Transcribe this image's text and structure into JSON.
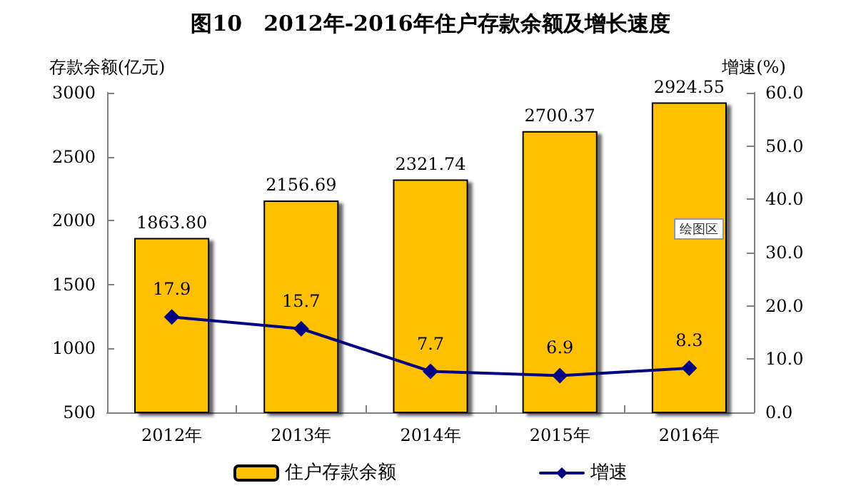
{
  "chart_data": {
    "type": "bar",
    "title": "图10　2012年-2016年住户存款余额及增长速度",
    "ylabel": "存款余额(亿元)",
    "y2label": "增速(%)",
    "categories": [
      "2012年",
      "2013年",
      "2014年",
      "2015年",
      "2016年"
    ],
    "series": [
      {
        "name": "住户存款余额",
        "color": "#ffc000",
        "values": [
          1863.8,
          2156.69,
          2321.74,
          2700.37,
          2924.55
        ],
        "value_labels": [
          "1863.80",
          "2156.69",
          "2321.74",
          "2700.37",
          "2924.55"
        ]
      },
      {
        "name": "增速",
        "type": "line",
        "axis": "y2",
        "color": "#000080",
        "values": [
          17.9,
          15.7,
          7.7,
          6.9,
          8.3
        ],
        "value_labels": [
          "17.9",
          "15.7",
          "7.7",
          "6.9",
          "8.3"
        ],
        "marker": "diamond"
      }
    ],
    "ylim": [
      500,
      3000
    ],
    "yticks": [
      500,
      1000,
      1500,
      2000,
      2500,
      3000
    ],
    "y2lim": [
      0,
      60
    ],
    "y2ticks": [
      {
        "value": 0,
        "label": "0.0"
      },
      {
        "value": 10,
        "label": "10.0"
      },
      {
        "value": 20,
        "label": "20.0"
      },
      {
        "value": 30,
        "label": "30.0"
      },
      {
        "value": 40,
        "label": "40.0"
      },
      {
        "value": 50,
        "label": "50.0"
      },
      {
        "value": 60,
        "label": "60.0"
      }
    ],
    "legend": "bottom",
    "grid": false,
    "annotations": [
      "绘图区"
    ]
  }
}
